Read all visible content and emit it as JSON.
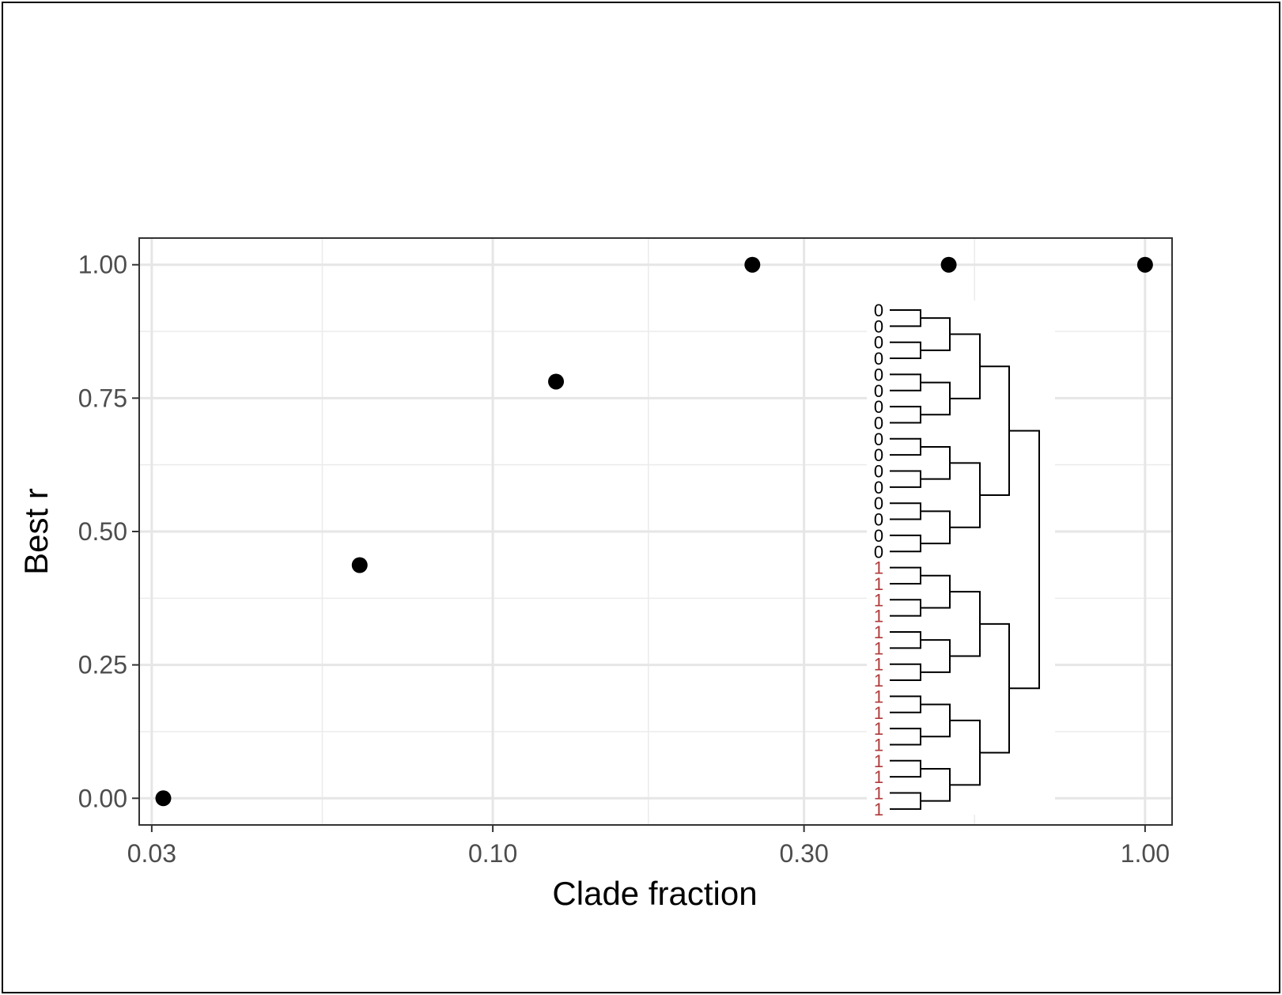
{
  "chart_data": {
    "type": "scatter",
    "title": "",
    "xlabel": "Clade fraction",
    "ylabel": "Best r",
    "x_scale": "log10",
    "xlim": [
      0.0287,
      1.1
    ],
    "ylim": [
      -0.05,
      1.05
    ],
    "x_ticks": [
      0.03,
      0.1,
      0.3,
      1.0
    ],
    "x_tick_labels": [
      "0.03",
      "0.10",
      "0.30",
      "1.00"
    ],
    "y_ticks": [
      0.0,
      0.25,
      0.5,
      0.75,
      1.0
    ],
    "y_tick_labels": [
      "0.00",
      "0.25",
      "0.50",
      "0.75",
      "1.00"
    ],
    "grid": true,
    "points": [
      {
        "x": 0.03125,
        "y": 0.0
      },
      {
        "x": 0.0625,
        "y": 0.437
      },
      {
        "x": 0.125,
        "y": 0.781
      },
      {
        "x": 0.25,
        "y": 1.0
      },
      {
        "x": 0.5,
        "y": 1.0
      },
      {
        "x": 1.0,
        "y": 1.0
      }
    ],
    "point_color": "#000000",
    "inset_dendrogram": {
      "type": "dendrogram",
      "leaf_labels": [
        "0",
        "0",
        "0",
        "0",
        "0",
        "0",
        "0",
        "0",
        "0",
        "0",
        "0",
        "0",
        "0",
        "0",
        "0",
        "0",
        "1",
        "1",
        "1",
        "1",
        "1",
        "1",
        "1",
        "1",
        "1",
        "1",
        "1",
        "1",
        "1",
        "1",
        "1",
        "1"
      ],
      "label_colors": {
        "0": "#000000",
        "1": "#b03a3a"
      },
      "structure": "balanced binary tree, 32 leaves"
    }
  }
}
